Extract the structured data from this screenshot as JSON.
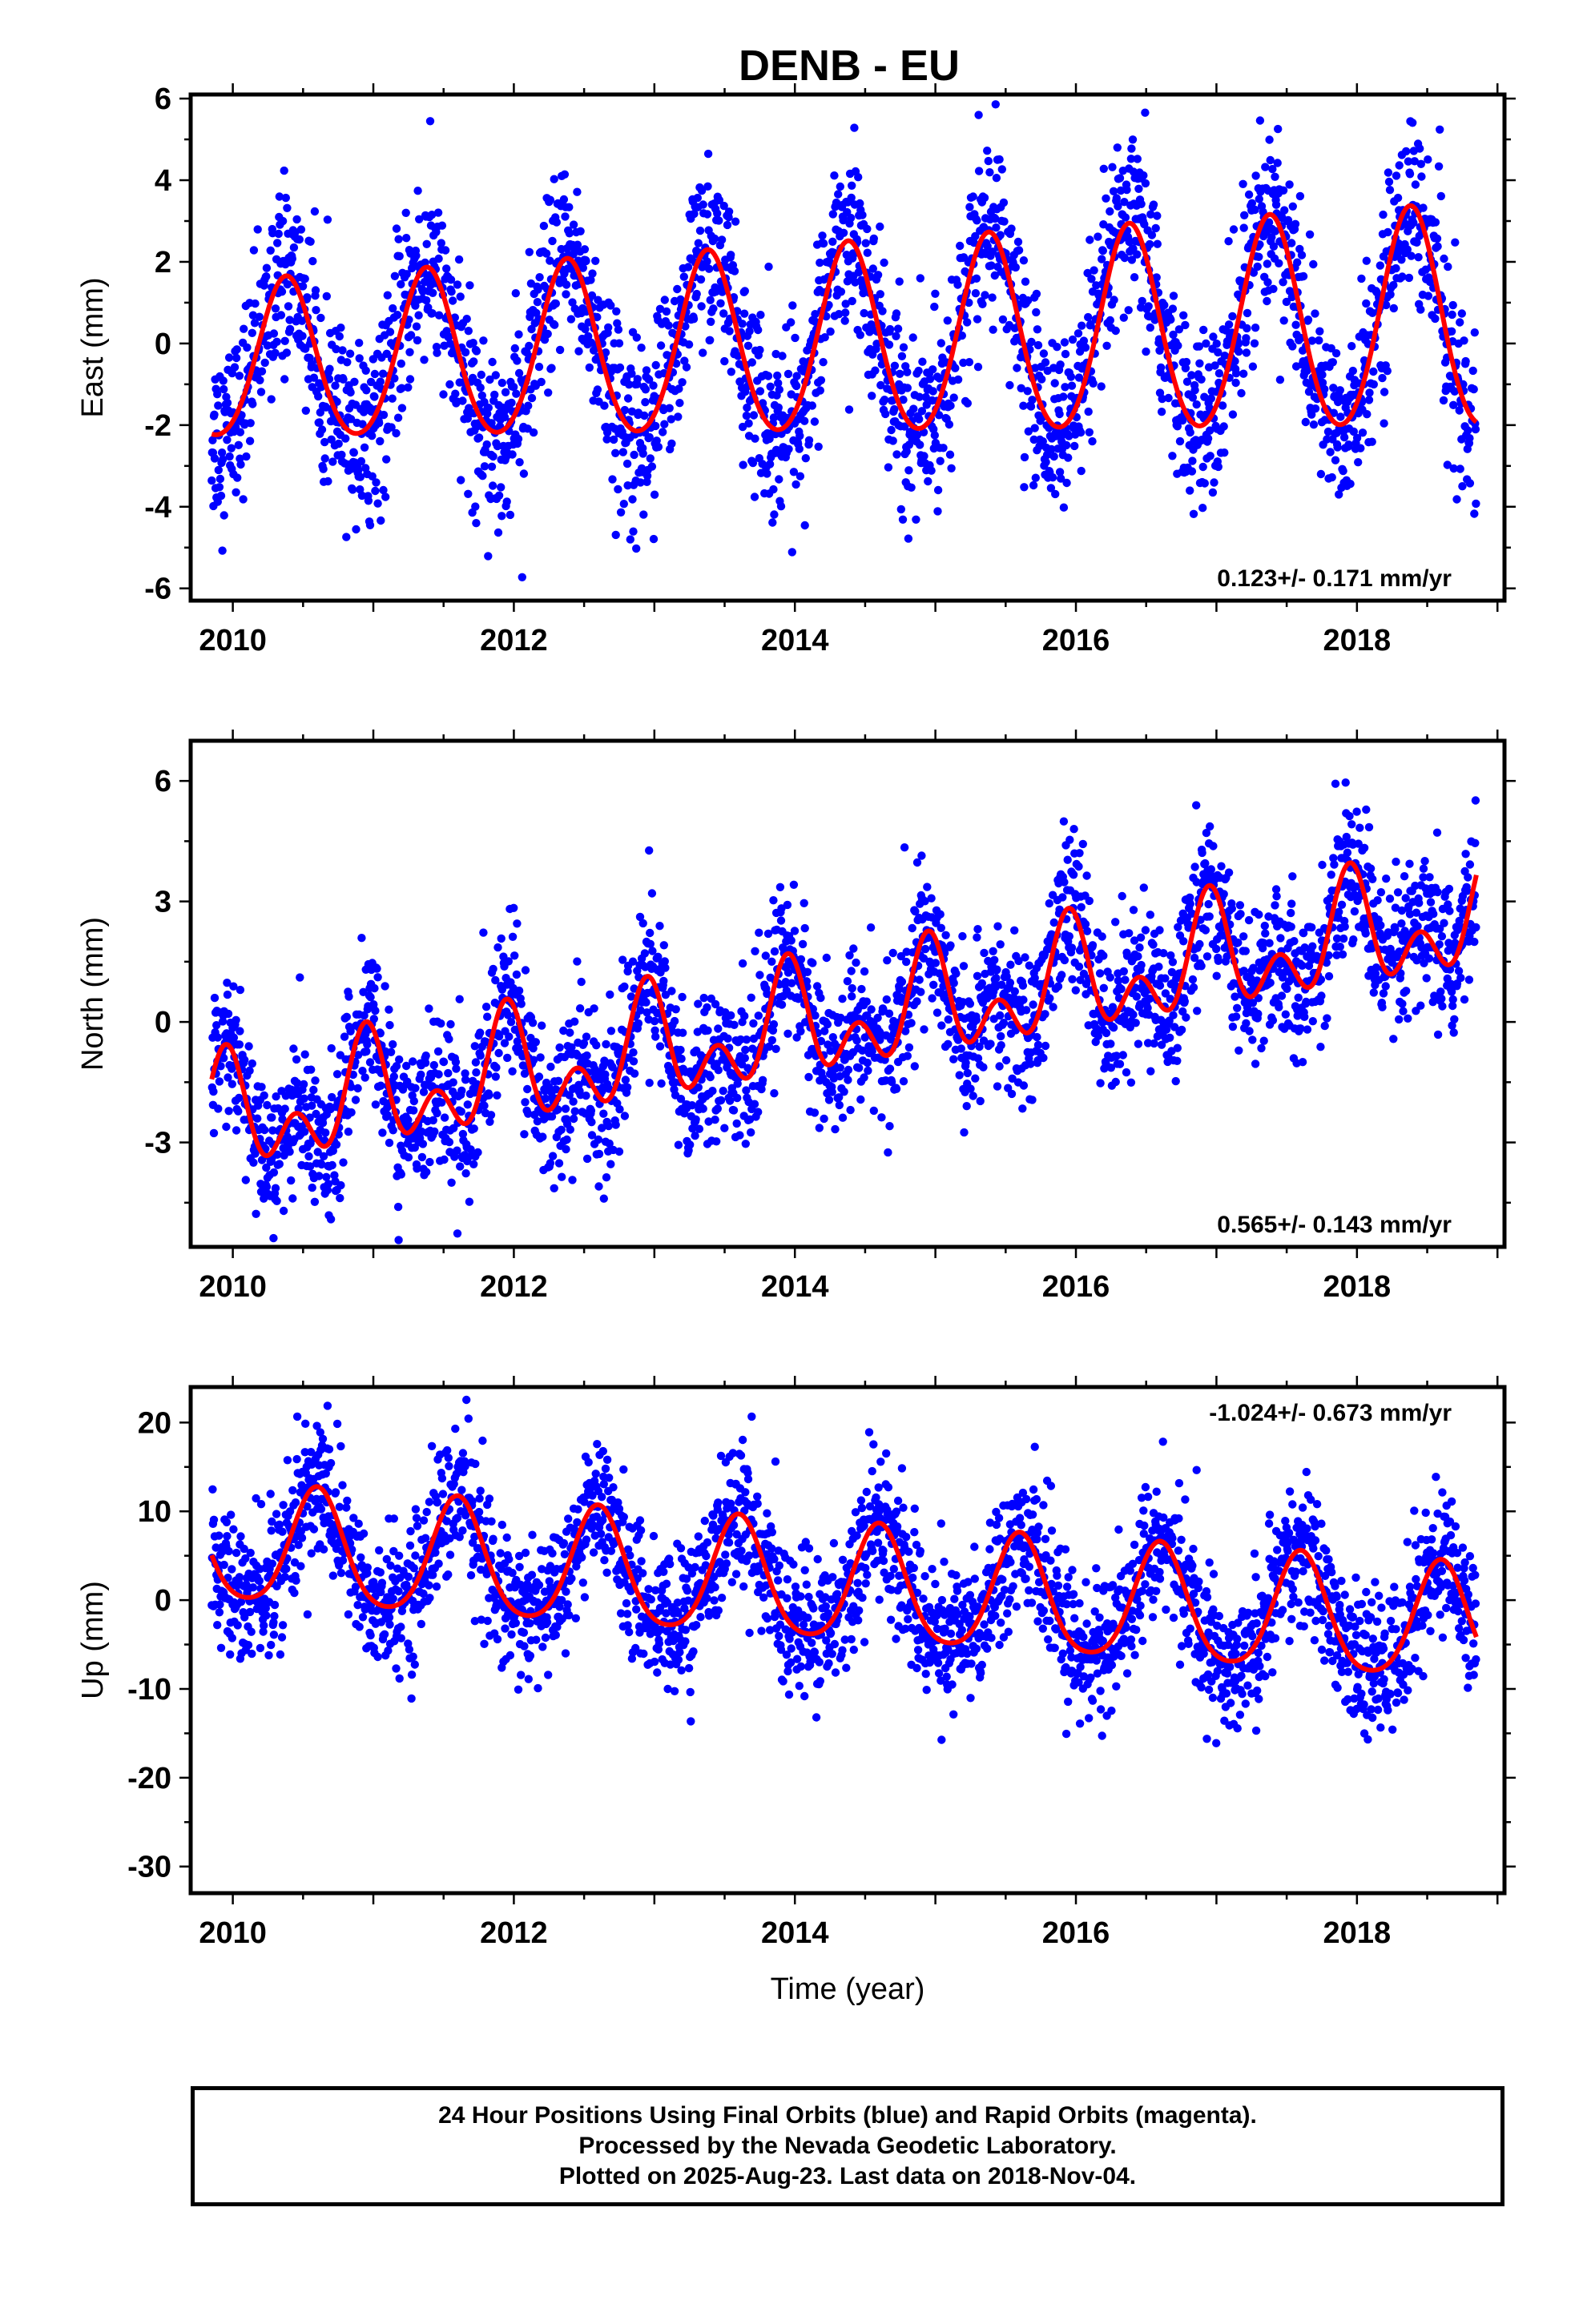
{
  "chart_data": [
    {
      "type": "scatter",
      "title": "DENB - EU",
      "ylabel": "East (mm)",
      "xlabel": "",
      "xlim": [
        2009.7,
        2019.05
      ],
      "ylim": [
        -6.3,
        6.1
      ],
      "xticks": [
        2010,
        2012,
        2014,
        2016,
        2018
      ],
      "yticks": [
        -6,
        -4,
        -2,
        0,
        2,
        4,
        6
      ],
      "rate_label": "0.123+/- 0.171 mm/yr",
      "rate_position": "bottom-right",
      "data_range": [
        2009.85,
        2018.85
      ],
      "colors": {
        "points": "#0000ff",
        "fit": "#ff0000"
      },
      "fit": {
        "offset": 0.0,
        "trend": 0.123,
        "annual_amp": 2.3,
        "annual_phase_peak": 0.38,
        "semi_amp": 0.2,
        "semi_phase_peak": 0.38,
        "ref_year": 2014.3,
        "amp_drift": 0.04
      },
      "noise_sd": 1.1,
      "points_per_year": 330
    },
    {
      "type": "scatter",
      "ylabel": "North (mm)",
      "xlabel": "",
      "xlim": [
        2009.7,
        2019.05
      ],
      "ylim": [
        -5.6,
        7.0
      ],
      "xticks": [
        2010,
        2012,
        2014,
        2016,
        2018
      ],
      "yticks": [
        -3,
        0,
        3,
        6
      ],
      "rate_label": "0.565+/- 0.143 mm/yr",
      "rate_position": "bottom-right",
      "data_range": [
        2009.85,
        2018.85
      ],
      "colors": {
        "points": "#0000ff",
        "fit": "#ff0000"
      },
      "fit": {
        "offset": 0.0,
        "trend": 0.565,
        "annual_amp": 1.0,
        "annual_phase_peak": 0.95,
        "semi_amp": 0.9,
        "semi_phase_peak": 0.45,
        "ref_year": 2014.3,
        "amp_drift": 0.0
      },
      "noise_sd": 0.95,
      "points_per_year": 330
    },
    {
      "type": "scatter",
      "ylabel": "Up (mm)",
      "xlabel": "Time (year)",
      "xlim": [
        2009.7,
        2019.05
      ],
      "ylim": [
        -33,
        24
      ],
      "xticks": [
        2010,
        2012,
        2014,
        2016,
        2018
      ],
      "yticks": [
        -30,
        -20,
        -10,
        0,
        10,
        20
      ],
      "rate_label": "-1.024+/- 0.673 mm/yr",
      "rate_position": "top-right",
      "data_range": [
        2009.85,
        2018.85
      ],
      "colors": {
        "points": "#0000ff",
        "fit": "#ff0000"
      },
      "fit": {
        "offset": 1.5,
        "trend": -1.024,
        "annual_amp": 6.5,
        "annual_phase_peak": 0.6,
        "semi_amp": 1.0,
        "semi_phase_peak": 0.1,
        "ref_year": 2014.3,
        "amp_drift": 0.0
      },
      "noise_sd": 4.0,
      "points_per_year": 330
    }
  ],
  "footer": {
    "line1": "24 Hour Positions Using Final Orbits (blue) and Rapid Orbits (magenta).",
    "line2": "Processed by the Nevada Geodetic Laboratory.",
    "line3": "Plotted on 2025-Aug-23. Last data on 2018-Nov-04."
  }
}
